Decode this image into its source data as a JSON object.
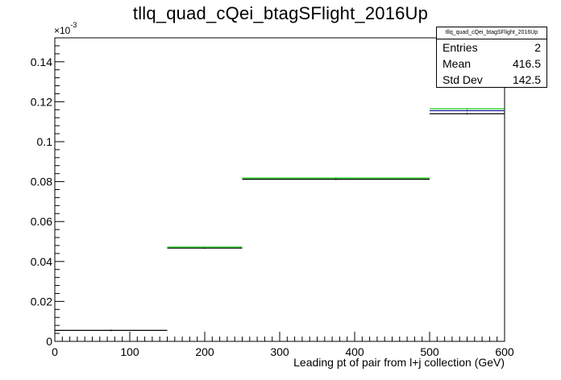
{
  "chart_data": {
    "type": "histogram",
    "title": "tllq_quad_cQei_btagSFlight_2016Up",
    "xlabel": "Leading pt of pair from l+j collection (GeV)",
    "ylabel": "",
    "xlim": [
      0,
      600
    ],
    "ylim": [
      0,
      0.000152
    ],
    "y_exponent_label": "×10",
    "y_exponent_power": "-3",
    "x_ticks": [
      "0",
      "100",
      "200",
      "300",
      "400",
      "500",
      "600"
    ],
    "y_ticks": [
      "0",
      "0.02",
      "0.04",
      "0.06",
      "0.08",
      "0.1",
      "0.12",
      "0.14"
    ],
    "grid": false,
    "legend": "none",
    "bins": [
      {
        "low": 0,
        "high": 150
      },
      {
        "low": 150,
        "high": 250
      },
      {
        "low": 250,
        "high": 500
      },
      {
        "low": 500,
        "high": 600
      }
    ],
    "series": [
      {
        "color": "#000000",
        "values": [
          5.5e-06,
          4.67e-05,
          8.12e-05,
          0.000114
        ]
      },
      {
        "color": "#00cc00",
        "values": [
          null,
          4.72e-05,
          8.18e-05,
          0.0001165
        ]
      },
      {
        "color": "#1a1a99",
        "values": [
          null,
          null,
          null,
          0.0001155
        ]
      }
    ],
    "stats": {
      "name": "tllq_quad_cQei_btagSFlight_2016Up",
      "entries_label": "Entries",
      "entries": "2",
      "mean_label": "Mean",
      "mean": "416.5",
      "stddev_label": "Std Dev",
      "stddev": "142.5"
    }
  }
}
